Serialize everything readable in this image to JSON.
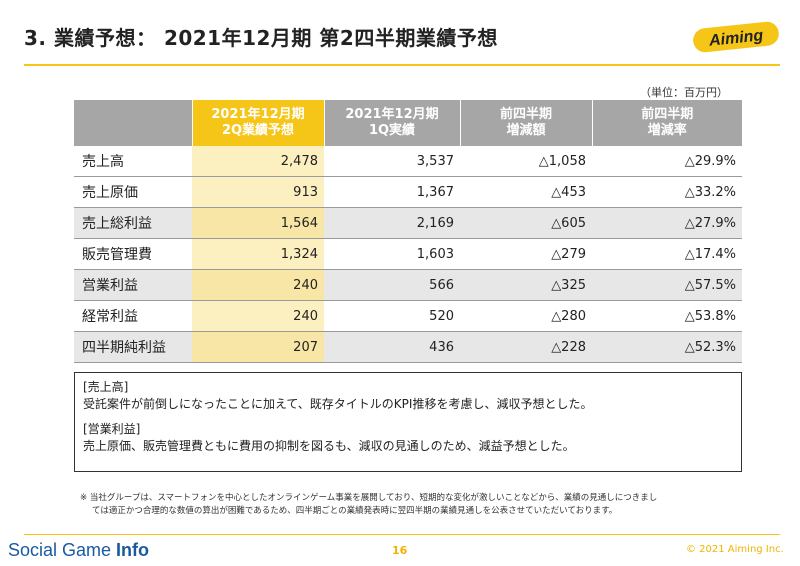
{
  "title": "3. 業績予想： 2021年12月期 第2四半期業績予想",
  "logo_text": "Aiming",
  "unit": "（単位：百万円）",
  "table": {
    "headers": [
      {
        "line1": "2021年12月期",
        "line2": "2Q業績予想"
      },
      {
        "line1": "2021年12月期",
        "line2": "1Q実績"
      },
      {
        "line1": "前四半期",
        "line2": "増減額"
      },
      {
        "line1": "前四半期",
        "line2": "増減率"
      }
    ],
    "rows": [
      {
        "label": "売上高",
        "forecast": "2,478",
        "actual": "3,537",
        "diff": "△1,058",
        "rate": "△29.9%"
      },
      {
        "label": "売上原価",
        "forecast": "913",
        "actual": "1,367",
        "diff": "△453",
        "rate": "△33.2%"
      },
      {
        "label": "売上総利益",
        "forecast": "1,564",
        "actual": "2,169",
        "diff": "△605",
        "rate": "△27.9%"
      },
      {
        "label": "販売管理費",
        "forecast": "1,324",
        "actual": "1,603",
        "diff": "△279",
        "rate": "△17.4%"
      },
      {
        "label": "営業利益",
        "forecast": "240",
        "actual": "566",
        "diff": "△325",
        "rate": "△57.5%"
      },
      {
        "label": "経常利益",
        "forecast": "240",
        "actual": "520",
        "diff": "△280",
        "rate": "△53.8%"
      },
      {
        "label": "四半期純利益",
        "forecast": "207",
        "actual": "436",
        "diff": "△228",
        "rate": "△52.3%"
      }
    ]
  },
  "notes": {
    "heading1": "[売上高]",
    "text1": "受託案件が前倒しになったことに加えて、既存タイトルのKPI推移を考慮し、減収予想とした。",
    "heading2": "[営業利益]",
    "text2": "売上原価、販売管理費ともに費用の抑制を図るも、減収の見通しのため、減益予想とした。"
  },
  "footnote": {
    "line1": "※ 当社グループは、スマートフォンを中心としたオンラインゲーム事業を展開しており、短期的な変化が激しいことなどから、業績の見通しにつきまし",
    "line2": "ては適正かつ合理的な数値の算出が困難であるため、四半期ごとの業績発表時に翌四半期の業績見通しを公表させていただいております。"
  },
  "footer": {
    "brand_light": "Social Game ",
    "brand_bold": "Info",
    "page": "16",
    "copyright": "© 2021 Aiming Inc."
  },
  "colors": {
    "accent": "#f5c518",
    "header_gray": "#a6a6a6",
    "brand_blue": "#1a5aa0"
  }
}
